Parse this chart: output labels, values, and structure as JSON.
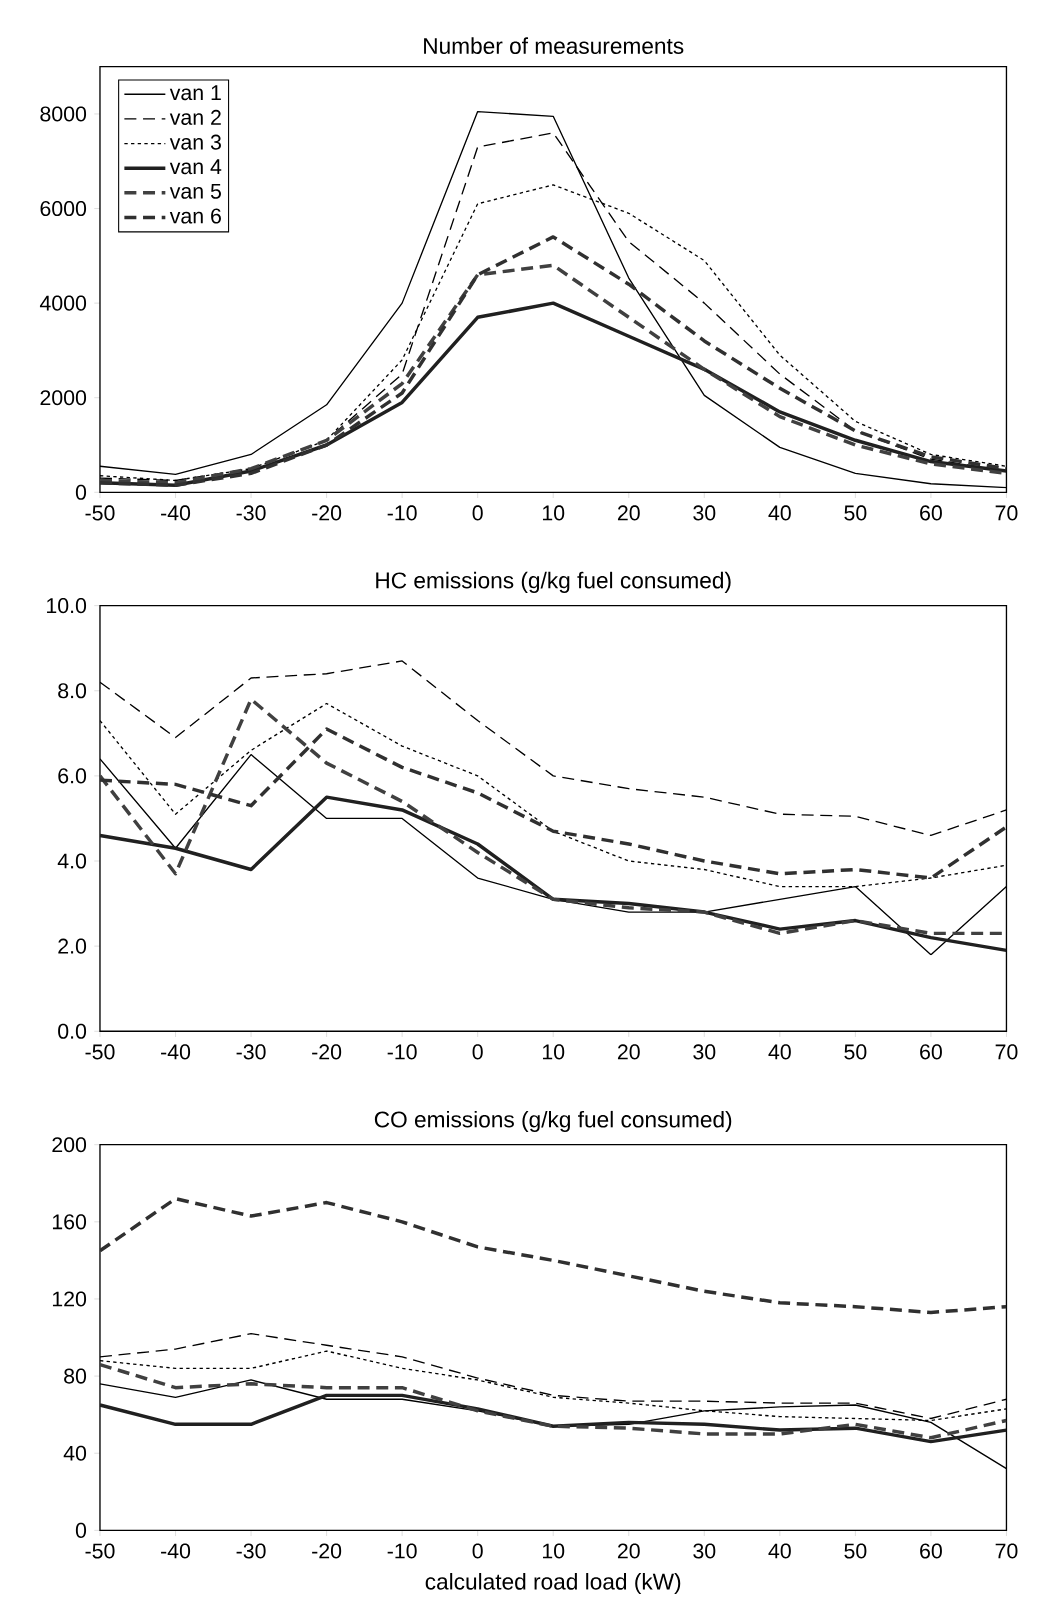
{
  "chart_data": [
    {
      "type": "line",
      "title": "Number of measurements",
      "x": [
        -50,
        -40,
        -30,
        -20,
        -10,
        0,
        10,
        20,
        30,
        40,
        50,
        60,
        70
      ],
      "xlim": [
        -50,
        70
      ],
      "xticks": [
        -50,
        -40,
        -30,
        -20,
        -10,
        0,
        10,
        20,
        30,
        40,
        50,
        60,
        70
      ],
      "ylim": [
        0,
        9000
      ],
      "yticks": [
        0,
        2000,
        4000,
        6000,
        8000
      ],
      "legend": "top left",
      "series": [
        {
          "name": "van 1",
          "color": "#000000",
          "line_style": "solid",
          "values": [
            550,
            380,
            800,
            1850,
            4000,
            8050,
            7950,
            4530,
            2050,
            950,
            400,
            180,
            100
          ]
        },
        {
          "name": "van 2",
          "color": "#000000",
          "line_style": "dashed",
          "values": [
            300,
            250,
            500,
            1100,
            2500,
            7300,
            7600,
            5300,
            4000,
            2500,
            1300,
            700,
            450
          ]
        },
        {
          "name": "van 3",
          "color": "#000000",
          "line_style": "dotted",
          "values": [
            350,
            250,
            500,
            1100,
            2800,
            6100,
            6500,
            5900,
            4900,
            2900,
            1500,
            800,
            550
          ]
        },
        {
          "name": "van 4",
          "color": "#202020",
          "line_style": "solid",
          "values": [
            200,
            150,
            450,
            1000,
            1900,
            3700,
            4000,
            3300,
            2600,
            1700,
            1100,
            650,
            450
          ]
        },
        {
          "name": "van 5",
          "color": "#404040",
          "line_style": "dashed",
          "values": [
            250,
            200,
            500,
            1100,
            2300,
            4600,
            4800,
            3700,
            2600,
            1600,
            1000,
            600,
            400
          ]
        },
        {
          "name": "van 6",
          "color": "#303030",
          "line_style": "dashed",
          "values": [
            200,
            150,
            400,
            1000,
            2100,
            4600,
            5400,
            4400,
            3200,
            2200,
            1300,
            750,
            500
          ]
        }
      ]
    },
    {
      "type": "line",
      "title": "HC emissions (g/kg fuel consumed)",
      "x": [
        -50,
        -40,
        -30,
        -20,
        -10,
        0,
        10,
        20,
        30,
        40,
        50,
        60,
        70
      ],
      "xlim": [
        -50,
        70
      ],
      "xticks": [
        -50,
        -40,
        -30,
        -20,
        -10,
        0,
        10,
        20,
        30,
        40,
        50,
        60,
        70
      ],
      "ylim": [
        0,
        10
      ],
      "yticks": [
        {
          "value": 0,
          "label": "0.0"
        },
        {
          "value": 2,
          "label": "2.0"
        },
        {
          "value": 4,
          "label": "4.0"
        },
        {
          "value": 6,
          "label": "6.0"
        },
        {
          "value": 8,
          "label": "8.0"
        },
        {
          "value": 10,
          "label": "10.0"
        }
      ],
      "series": [
        {
          "color": "#000000",
          "line_style": "solid",
          "values": [
            6.4,
            4.3,
            6.5,
            5.0,
            5.0,
            3.6,
            3.1,
            2.8,
            2.8,
            3.1,
            3.4,
            1.8,
            3.4
          ]
        },
        {
          "color": "#000000",
          "line_style": "dashed",
          "values": [
            8.2,
            6.9,
            8.3,
            8.4,
            8.7,
            7.3,
            6.0,
            5.7,
            5.5,
            5.1,
            5.05,
            4.6,
            5.2
          ]
        },
        {
          "color": "#000000",
          "line_style": "dotted",
          "values": [
            7.3,
            5.1,
            6.6,
            7.7,
            6.7,
            6.0,
            4.7,
            4.0,
            3.8,
            3.4,
            3.4,
            3.6,
            3.9
          ]
        },
        {
          "color": "#202020",
          "line_style": "solid",
          "values": [
            4.6,
            4.3,
            3.8,
            5.5,
            5.2,
            4.4,
            3.1,
            3.0,
            2.8,
            2.4,
            2.6,
            2.2,
            1.9
          ]
        },
        {
          "color": "#404040",
          "line_style": "dashed",
          "values": [
            6.0,
            3.7,
            7.8,
            6.3,
            5.4,
            4.2,
            3.1,
            2.9,
            2.8,
            2.3,
            2.6,
            2.3,
            2.3
          ]
        },
        {
          "color": "#303030",
          "line_style": "dashed",
          "values": [
            5.9,
            5.8,
            5.3,
            7.1,
            6.2,
            5.6,
            4.7,
            4.4,
            4.0,
            3.7,
            3.8,
            3.6,
            4.8
          ]
        }
      ]
    },
    {
      "type": "line",
      "title": "CO emissions (g/kg fuel consumed)",
      "xlabel": "calculated road load (kW)",
      "x": [
        -50,
        -40,
        -30,
        -20,
        -10,
        0,
        10,
        20,
        30,
        40,
        50,
        60,
        70
      ],
      "xlim": [
        -50,
        70
      ],
      "xticks": [
        -50,
        -40,
        -30,
        -20,
        -10,
        0,
        10,
        20,
        30,
        40,
        50,
        60,
        70
      ],
      "ylim": [
        0,
        200
      ],
      "yticks": [
        0,
        40,
        80,
        120,
        160,
        200
      ],
      "series": [
        {
          "color": "#000000",
          "line_style": "solid",
          "values": [
            76,
            69,
            78,
            68,
            68,
            62,
            54,
            55,
            62,
            64,
            65,
            56,
            32
          ]
        },
        {
          "color": "#000000",
          "line_style": "dashed",
          "values": [
            90,
            94,
            102,
            96,
            90,
            79,
            70,
            67,
            67,
            66,
            66,
            58,
            68
          ]
        },
        {
          "color": "#000000",
          "line_style": "dotted",
          "values": [
            88,
            84,
            84,
            93,
            84,
            78,
            69,
            66,
            62,
            59,
            58,
            57,
            63
          ]
        },
        {
          "color": "#202020",
          "line_style": "solid",
          "values": [
            65,
            55,
            55,
            70,
            70,
            63,
            54,
            56,
            55,
            52,
            53,
            46,
            52
          ]
        },
        {
          "color": "#404040",
          "line_style": "dashed",
          "values": [
            86,
            74,
            76,
            74,
            74,
            62,
            54,
            53,
            50,
            50,
            55,
            48,
            57
          ]
        },
        {
          "color": "#303030",
          "line_style": "dashed",
          "values": [
            145,
            172,
            163,
            170,
            160,
            147,
            140,
            132,
            124,
            118,
            116,
            113,
            116
          ]
        }
      ]
    }
  ]
}
